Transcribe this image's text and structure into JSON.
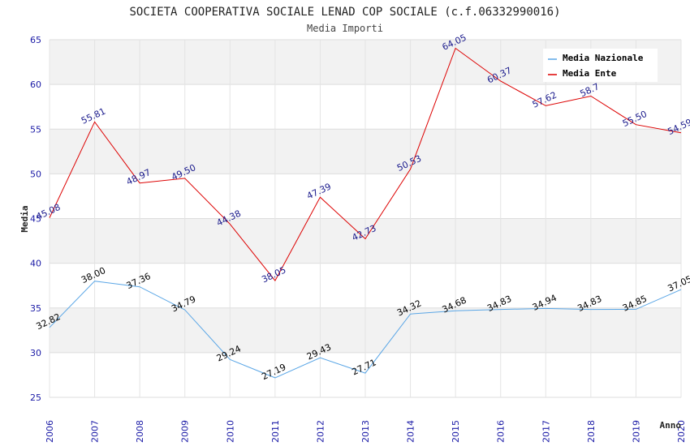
{
  "chart_data": {
    "type": "line",
    "title": "SOCIETA COOPERATIVA SOCIALE LENAD COP SOCIALE (c.f.06332990016)",
    "subtitle": "Media Importi",
    "xlabel": "Anno",
    "ylabel": "Media",
    "ylim": [
      25,
      65
    ],
    "yticks": [
      25,
      30,
      35,
      40,
      45,
      50,
      55,
      60,
      65
    ],
    "categories": [
      "2006",
      "2007",
      "2008",
      "2009",
      "2010",
      "2011",
      "2012",
      "2013",
      "2014",
      "2015",
      "2016",
      "2017",
      "2018",
      "2019",
      "2020"
    ],
    "grid": true,
    "legend_position": "top-right",
    "series": [
      {
        "name": "Media Nazionale",
        "color": "#5aa6e6",
        "label_color": "#000000",
        "values": [
          32.82,
          38.0,
          37.36,
          34.79,
          29.24,
          27.19,
          29.43,
          27.71,
          34.32,
          34.68,
          34.83,
          34.94,
          34.83,
          34.85,
          37.05
        ],
        "labels": [
          "32.82",
          "38.00",
          "37.36",
          "34.79",
          "29.24",
          "27.19",
          "29.43",
          "27.71",
          "34.32",
          "34.68",
          "34.83",
          "34.94",
          "34.83",
          "34.85",
          "37.05"
        ]
      },
      {
        "name": "Media Ente",
        "color": "#dd0000",
        "label_color": "#1a1a8c",
        "values": [
          45.08,
          55.81,
          48.97,
          49.5,
          44.38,
          38.05,
          47.39,
          42.73,
          50.53,
          64.05,
          60.37,
          57.62,
          58.7,
          55.5,
          54.59
        ],
        "labels": [
          "45.08",
          "55.81",
          "48.97",
          "49.50",
          "44.38",
          "38.05",
          "47.39",
          "42.73",
          "50.53",
          "64.05",
          "60.37",
          "57.62",
          "58.7",
          "55.50",
          "54.59"
        ]
      }
    ]
  }
}
